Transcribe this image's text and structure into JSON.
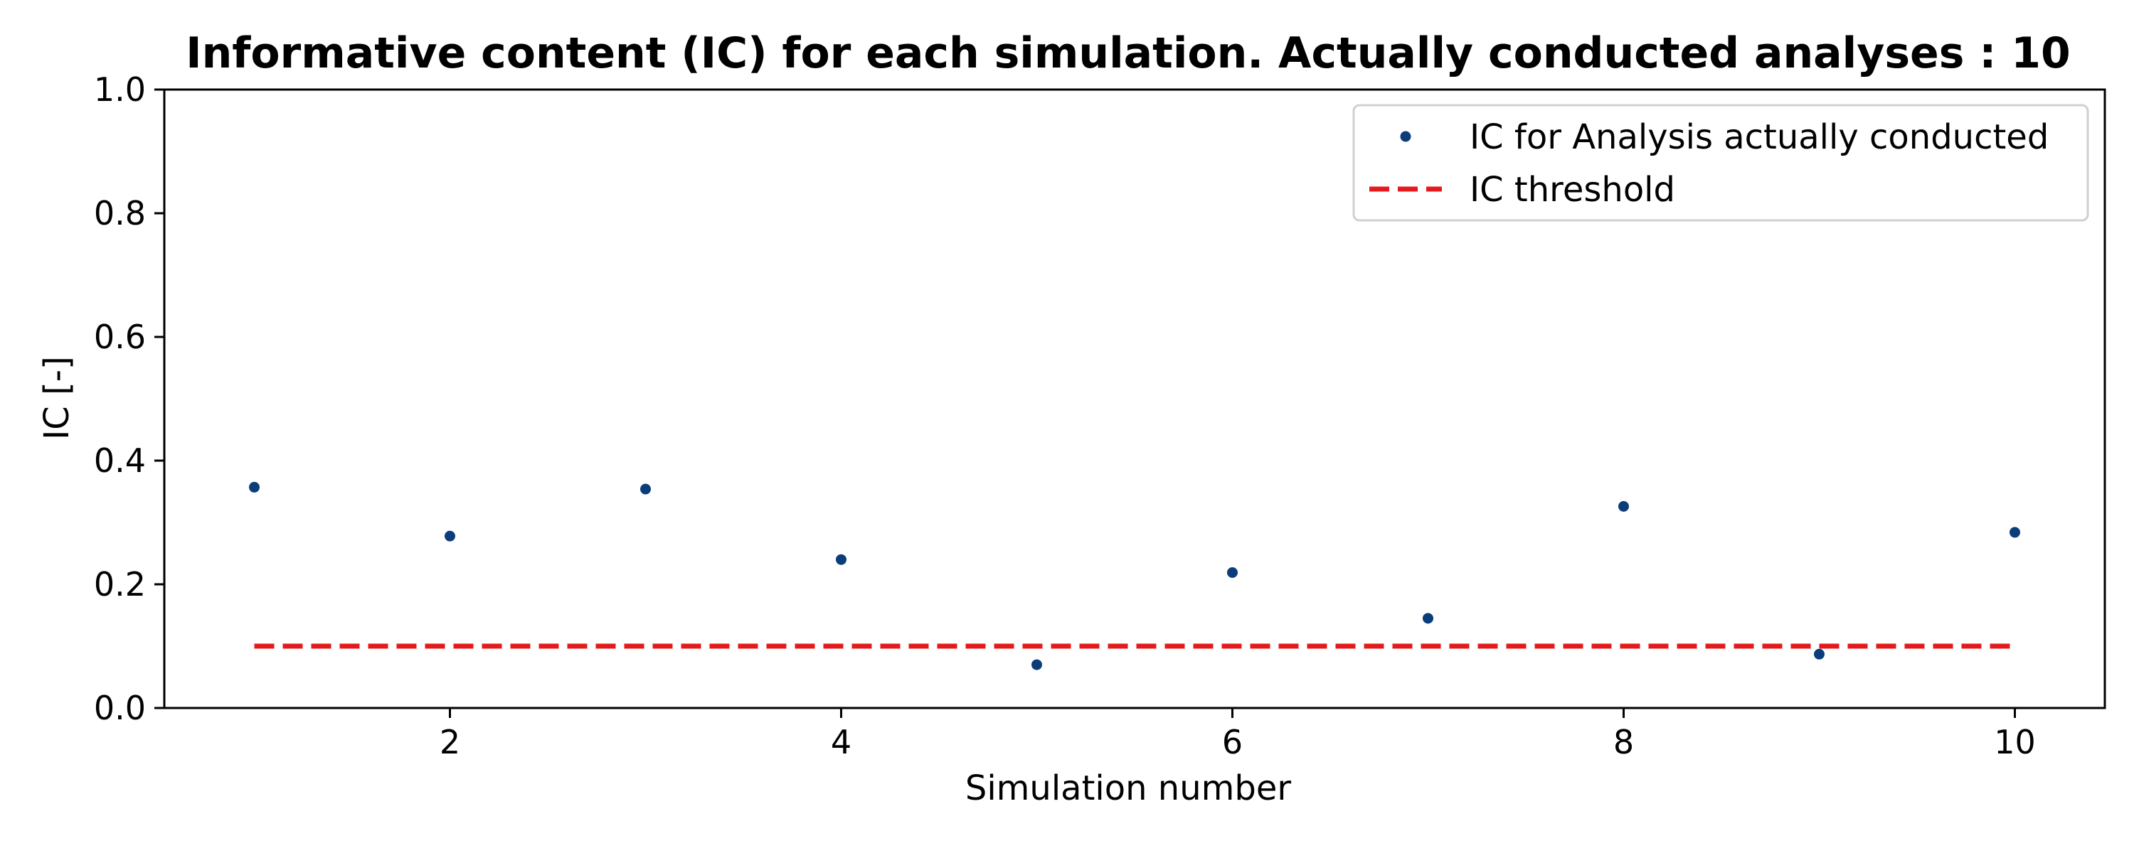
{
  "chart_data": {
    "type": "scatter",
    "title": "Informative content (IC) for each simulation. Actually conducted analyses : 10",
    "xlabel": "Simulation number",
    "ylabel": "IC [-]",
    "xlim": [
      0.54,
      10.46
    ],
    "ylim": [
      0,
      1
    ],
    "xticks": [
      2,
      4,
      6,
      8,
      10
    ],
    "yticks": [
      0.0,
      0.2,
      0.4,
      0.6,
      0.8,
      1.0
    ],
    "xtick_labels": [
      "2",
      "4",
      "6",
      "8",
      "10"
    ],
    "ytick_labels": [
      "0.0",
      "0.2",
      "0.4",
      "0.6",
      "0.8",
      "1.0"
    ],
    "grid": false,
    "legend_position": "top-right",
    "series": [
      {
        "name": "IC for Analysis actually conducted",
        "kind": "scatter",
        "color": "#0b3d7a",
        "x": [
          1,
          2,
          3,
          4,
          5,
          6,
          7,
          8,
          9,
          10
        ],
        "y": [
          0.357,
          0.278,
          0.354,
          0.24,
          0.07,
          0.219,
          0.145,
          0.326,
          0.087,
          0.284
        ]
      },
      {
        "name": "IC threshold",
        "kind": "line",
        "style": "dashed",
        "color": "#e31a1c",
        "x": [
          1,
          10
        ],
        "y": [
          0.1,
          0.1
        ]
      }
    ]
  }
}
